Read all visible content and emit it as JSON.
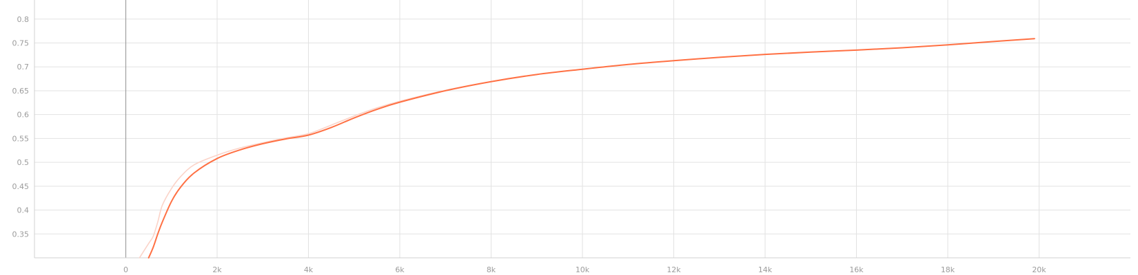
{
  "chart_data": {
    "type": "line",
    "title": "",
    "xlabel": "",
    "ylabel": "",
    "xlim": [
      -2000,
      22000
    ],
    "ylim": [
      0.3,
      0.84
    ],
    "x_ticks": [
      {
        "value": 0,
        "label": "0"
      },
      {
        "value": 2000,
        "label": "2k"
      },
      {
        "value": 4000,
        "label": "4k"
      },
      {
        "value": 6000,
        "label": "6k"
      },
      {
        "value": 8000,
        "label": "8k"
      },
      {
        "value": 10000,
        "label": "10k"
      },
      {
        "value": 12000,
        "label": "12k"
      },
      {
        "value": 14000,
        "label": "14k"
      },
      {
        "value": 16000,
        "label": "16k"
      },
      {
        "value": 18000,
        "label": "18k"
      },
      {
        "value": 20000,
        "label": "20k"
      }
    ],
    "y_ticks": [
      {
        "value": 0.35,
        "label": "0.35"
      },
      {
        "value": 0.4,
        "label": "0.4"
      },
      {
        "value": 0.45,
        "label": "0.45"
      },
      {
        "value": 0.5,
        "label": "0.5"
      },
      {
        "value": 0.55,
        "label": "0.55"
      },
      {
        "value": 0.6,
        "label": "0.6"
      },
      {
        "value": 0.65,
        "label": "0.65"
      },
      {
        "value": 0.7,
        "label": "0.7"
      },
      {
        "value": 0.75,
        "label": "0.75"
      },
      {
        "value": 0.8,
        "label": "0.8"
      }
    ],
    "grid": true,
    "series": [
      {
        "role": "raw",
        "color": "#fbd3c8",
        "x": [
          300,
          500,
          600,
          700,
          800,
          1000,
          1200,
          1500,
          2000,
          2500,
          3000,
          3500,
          4000,
          4500,
          5000,
          5500,
          6000,
          7000,
          8000,
          9000,
          10000,
          11000,
          12000,
          13000,
          14000,
          15000,
          16000,
          17000,
          18000,
          19000,
          19900
        ],
        "y": [
          0.3,
          0.33,
          0.345,
          0.375,
          0.41,
          0.445,
          0.47,
          0.495,
          0.515,
          0.53,
          0.541,
          0.551,
          0.56,
          0.578,
          0.597,
          0.614,
          0.628,
          0.651,
          0.669,
          0.684,
          0.695,
          0.705,
          0.713,
          0.72,
          0.726,
          0.731,
          0.735,
          0.74,
          0.746,
          0.753,
          0.759
        ]
      },
      {
        "role": "smoothed",
        "color": "#ff7043",
        "x": [
          500,
          600,
          700,
          800,
          1000,
          1200,
          1500,
          2000,
          2500,
          3000,
          3500,
          4000,
          4500,
          5000,
          5500,
          6000,
          7000,
          8000,
          9000,
          10000,
          11000,
          12000,
          13000,
          14000,
          15000,
          16000,
          17000,
          18000,
          19000,
          19900
        ],
        "y": [
          0.3,
          0.322,
          0.35,
          0.375,
          0.418,
          0.448,
          0.478,
          0.508,
          0.526,
          0.539,
          0.549,
          0.557,
          0.573,
          0.593,
          0.611,
          0.626,
          0.65,
          0.669,
          0.684,
          0.695,
          0.705,
          0.713,
          0.72,
          0.726,
          0.731,
          0.735,
          0.74,
          0.746,
          0.753,
          0.759
        ]
      }
    ]
  }
}
